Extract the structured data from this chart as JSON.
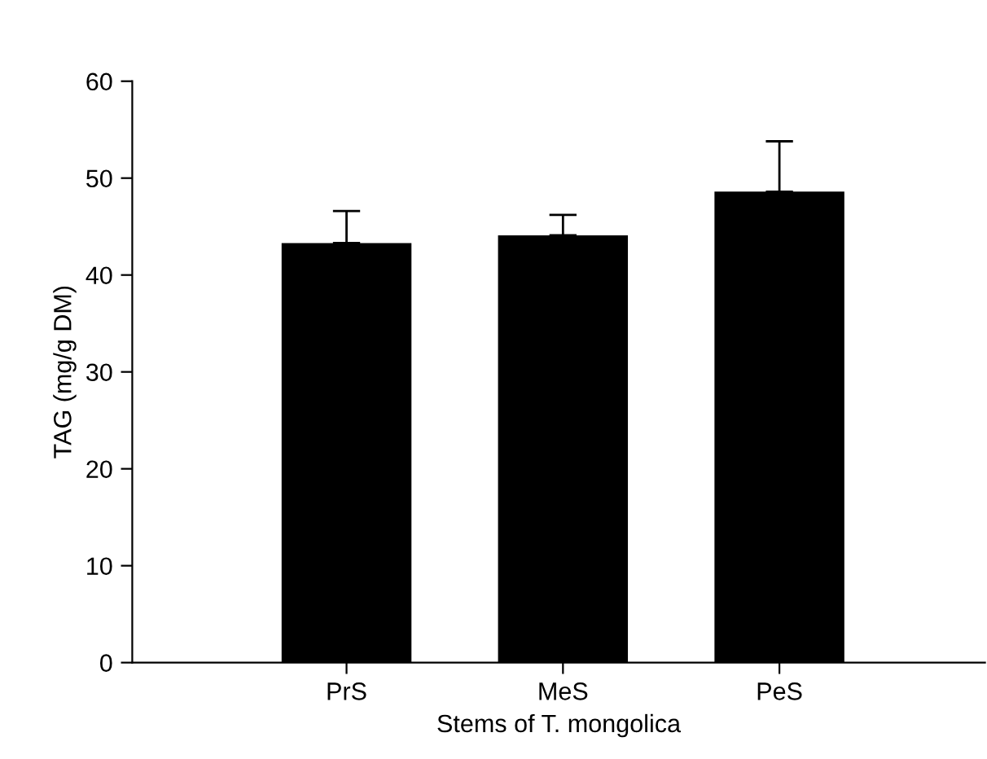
{
  "chart_data": {
    "type": "bar",
    "xlabel": "Stems of T. mongolica",
    "ylabel": "TAG (mg/g DM)",
    "categories": [
      "PrS",
      "MeS",
      "PeS"
    ],
    "values": [
      43.3,
      44.1,
      48.6
    ],
    "errors": [
      [
        43.3,
        46.6
      ],
      [
        44.1,
        46.2
      ],
      [
        48.6,
        53.8
      ]
    ],
    "color": "#000000",
    "ylim": [
      0,
      60
    ],
    "yticks": [
      0,
      10,
      20,
      30,
      40,
      50,
      60
    ],
    "grid": false
  }
}
